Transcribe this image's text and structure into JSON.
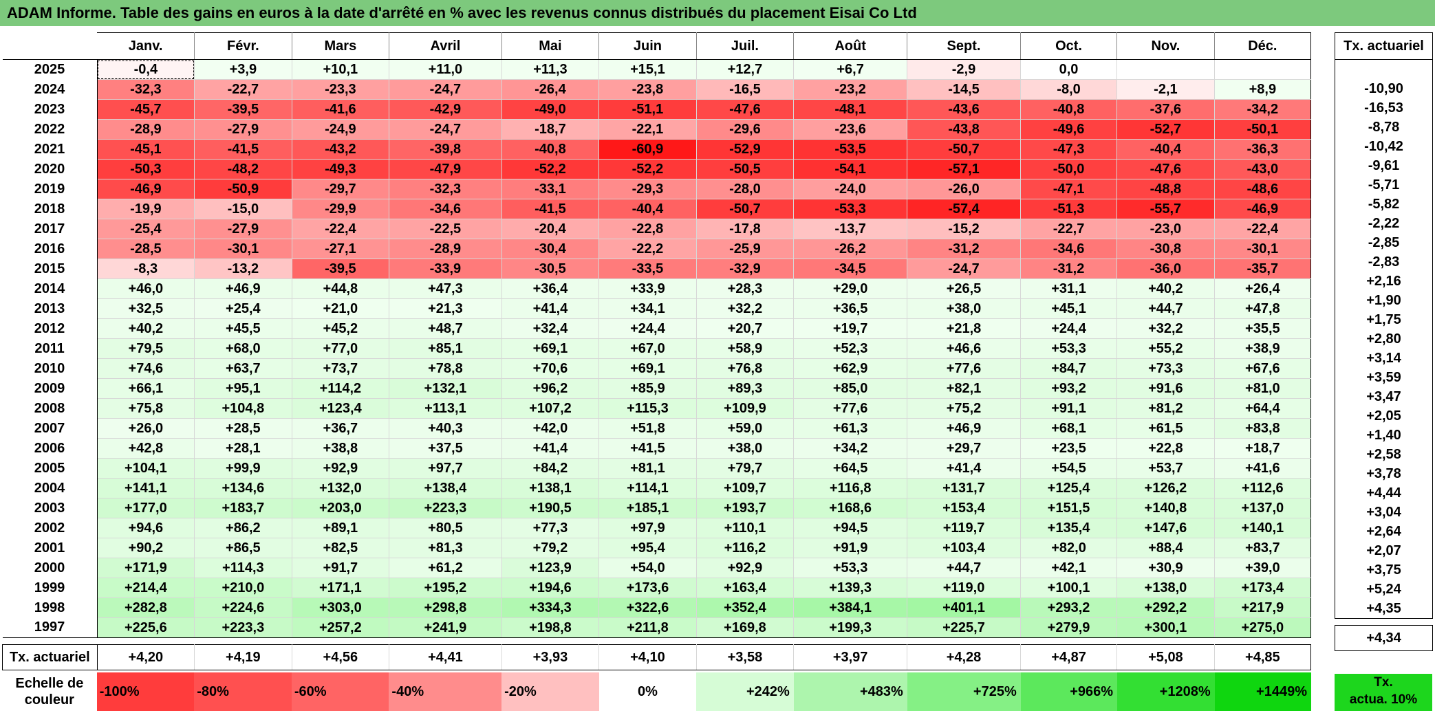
{
  "title": "ADAM Informe. Table des gains en euros à la date d'arrêté en % avec les revenus connus distribués du placement Eisai Co Ltd",
  "months": [
    "Janv.",
    "Févr.",
    "Mars",
    "Avril",
    "Mai",
    "Juin",
    "Juil.",
    "Août",
    "Sept.",
    "Oct.",
    "Nov.",
    "Déc."
  ],
  "tx_header": "Tx. actuariel",
  "avg_label": "Tx. actuariel",
  "rows": [
    {
      "year": "2025",
      "v": [
        "-0,4",
        "+3,9",
        "+10,1",
        "+11,0",
        "+11,3",
        "+15,1",
        "+12,7",
        "+6,7",
        "-2,9",
        "0,0",
        "",
        ""
      ],
      "tx": ""
    },
    {
      "year": "2024",
      "v": [
        "-32,3",
        "-22,7",
        "-23,3",
        "-24,7",
        "-26,4",
        "-23,8",
        "-16,5",
        "-23,2",
        "-14,5",
        "-8,0",
        "-2,1",
        "+8,9"
      ],
      "tx": "-10,90"
    },
    {
      "year": "2023",
      "v": [
        "-45,7",
        "-39,5",
        "-41,6",
        "-42,9",
        "-49,0",
        "-51,1",
        "-47,6",
        "-48,1",
        "-43,6",
        "-40,8",
        "-37,6",
        "-34,2"
      ],
      "tx": "-16,53"
    },
    {
      "year": "2022",
      "v": [
        "-28,9",
        "-27,9",
        "-24,9",
        "-24,7",
        "-18,7",
        "-22,1",
        "-29,6",
        "-23,6",
        "-43,8",
        "-49,6",
        "-52,7",
        "-50,1"
      ],
      "tx": "-8,78"
    },
    {
      "year": "2021",
      "v": [
        "-45,1",
        "-41,5",
        "-43,2",
        "-39,8",
        "-40,8",
        "-60,9",
        "-52,9",
        "-53,5",
        "-50,7",
        "-47,3",
        "-40,4",
        "-36,3"
      ],
      "tx": "-10,42"
    },
    {
      "year": "2020",
      "v": [
        "-50,3",
        "-48,2",
        "-49,3",
        "-47,9",
        "-52,2",
        "-52,2",
        "-50,5",
        "-54,1",
        "-57,1",
        "-50,0",
        "-47,6",
        "-43,0"
      ],
      "tx": "-9,61"
    },
    {
      "year": "2019",
      "v": [
        "-46,9",
        "-50,9",
        "-29,7",
        "-32,3",
        "-33,1",
        "-29,3",
        "-28,0",
        "-24,0",
        "-26,0",
        "-47,1",
        "-48,8",
        "-48,6"
      ],
      "tx": "-5,71"
    },
    {
      "year": "2018",
      "v": [
        "-19,9",
        "-15,0",
        "-29,9",
        "-34,6",
        "-41,5",
        "-40,4",
        "-50,7",
        "-53,3",
        "-57,4",
        "-51,3",
        "-55,7",
        "-46,9"
      ],
      "tx": "-5,82"
    },
    {
      "year": "2017",
      "v": [
        "-25,4",
        "-27,9",
        "-22,4",
        "-22,5",
        "-20,4",
        "-22,8",
        "-17,8",
        "-13,7",
        "-15,2",
        "-22,7",
        "-23,0",
        "-22,4"
      ],
      "tx": "-2,22"
    },
    {
      "year": "2016",
      "v": [
        "-28,5",
        "-30,1",
        "-27,1",
        "-28,9",
        "-30,4",
        "-22,2",
        "-25,9",
        "-26,2",
        "-31,2",
        "-34,6",
        "-30,8",
        "-30,1"
      ],
      "tx": "-2,85"
    },
    {
      "year": "2015",
      "v": [
        "-8,3",
        "-13,2",
        "-39,5",
        "-33,9",
        "-30,5",
        "-33,5",
        "-32,9",
        "-34,5",
        "-24,7",
        "-31,2",
        "-36,0",
        "-35,7"
      ],
      "tx": "-2,83"
    },
    {
      "year": "2014",
      "v": [
        "+46,0",
        "+46,9",
        "+44,8",
        "+47,3",
        "+36,4",
        "+33,9",
        "+28,3",
        "+29,0",
        "+26,5",
        "+31,1",
        "+40,2",
        "+26,4"
      ],
      "tx": "+2,16"
    },
    {
      "year": "2013",
      "v": [
        "+32,5",
        "+25,4",
        "+21,0",
        "+21,3",
        "+41,4",
        "+34,1",
        "+32,2",
        "+36,5",
        "+38,0",
        "+45,1",
        "+44,7",
        "+47,8"
      ],
      "tx": "+1,90"
    },
    {
      "year": "2012",
      "v": [
        "+40,2",
        "+45,5",
        "+45,2",
        "+48,7",
        "+32,4",
        "+24,4",
        "+20,7",
        "+19,7",
        "+21,8",
        "+24,4",
        "+32,2",
        "+35,5"
      ],
      "tx": "+1,75"
    },
    {
      "year": "2011",
      "v": [
        "+79,5",
        "+68,0",
        "+77,0",
        "+85,1",
        "+69,1",
        "+67,0",
        "+58,9",
        "+52,3",
        "+46,6",
        "+53,3",
        "+55,2",
        "+38,9"
      ],
      "tx": "+2,80"
    },
    {
      "year": "2010",
      "v": [
        "+74,6",
        "+63,7",
        "+73,7",
        "+78,8",
        "+70,6",
        "+69,1",
        "+76,8",
        "+62,9",
        "+77,6",
        "+84,7",
        "+73,3",
        "+67,6"
      ],
      "tx": "+3,14"
    },
    {
      "year": "2009",
      "v": [
        "+66,1",
        "+95,1",
        "+114,2",
        "+132,1",
        "+96,2",
        "+85,9",
        "+89,3",
        "+85,0",
        "+82,1",
        "+93,2",
        "+91,6",
        "+81,0"
      ],
      "tx": "+3,59"
    },
    {
      "year": "2008",
      "v": [
        "+75,8",
        "+104,8",
        "+123,4",
        "+113,1",
        "+107,2",
        "+115,3",
        "+109,9",
        "+77,6",
        "+75,2",
        "+91,1",
        "+81,2",
        "+64,4"
      ],
      "tx": "+3,47"
    },
    {
      "year": "2007",
      "v": [
        "+26,0",
        "+28,5",
        "+36,7",
        "+40,3",
        "+42,0",
        "+51,8",
        "+59,0",
        "+61,3",
        "+46,9",
        "+68,1",
        "+61,5",
        "+83,8"
      ],
      "tx": "+2,05"
    },
    {
      "year": "2006",
      "v": [
        "+42,8",
        "+28,1",
        "+38,8",
        "+37,5",
        "+41,4",
        "+41,5",
        "+38,0",
        "+34,2",
        "+29,7",
        "+23,5",
        "+22,8",
        "+18,7"
      ],
      "tx": "+1,40"
    },
    {
      "year": "2005",
      "v": [
        "+104,1",
        "+99,9",
        "+92,9",
        "+97,7",
        "+84,2",
        "+81,1",
        "+79,7",
        "+64,5",
        "+41,4",
        "+54,5",
        "+53,7",
        "+41,6"
      ],
      "tx": "+2,58"
    },
    {
      "year": "2004",
      "v": [
        "+141,1",
        "+134,6",
        "+132,0",
        "+138,4",
        "+138,1",
        "+114,1",
        "+109,7",
        "+116,8",
        "+131,7",
        "+125,4",
        "+126,2",
        "+112,6"
      ],
      "tx": "+3,78"
    },
    {
      "year": "2003",
      "v": [
        "+177,0",
        "+183,7",
        "+203,0",
        "+223,3",
        "+190,5",
        "+185,1",
        "+193,7",
        "+168,6",
        "+153,4",
        "+151,5",
        "+140,8",
        "+137,0"
      ],
      "tx": "+4,44"
    },
    {
      "year": "2002",
      "v": [
        "+94,6",
        "+86,2",
        "+89,1",
        "+80,5",
        "+77,3",
        "+97,9",
        "+110,1",
        "+94,5",
        "+119,7",
        "+135,4",
        "+147,6",
        "+140,1"
      ],
      "tx": "+3,04"
    },
    {
      "year": "2001",
      "v": [
        "+90,2",
        "+86,5",
        "+82,5",
        "+81,3",
        "+79,2",
        "+95,4",
        "+116,2",
        "+91,9",
        "+103,4",
        "+82,0",
        "+88,4",
        "+83,7"
      ],
      "tx": "+2,64"
    },
    {
      "year": "2000",
      "v": [
        "+171,9",
        "+114,3",
        "+91,7",
        "+61,2",
        "+123,9",
        "+54,0",
        "+92,9",
        "+53,3",
        "+44,7",
        "+42,1",
        "+30,9",
        "+39,0"
      ],
      "tx": "+2,07"
    },
    {
      "year": "1999",
      "v": [
        "+214,4",
        "+210,0",
        "+171,1",
        "+195,2",
        "+194,6",
        "+173,6",
        "+163,4",
        "+139,3",
        "+119,0",
        "+100,1",
        "+138,0",
        "+173,4"
      ],
      "tx": "+3,75"
    },
    {
      "year": "1998",
      "v": [
        "+282,8",
        "+224,6",
        "+303,0",
        "+298,8",
        "+334,3",
        "+322,6",
        "+352,4",
        "+384,1",
        "+401,1",
        "+293,2",
        "+292,2",
        "+217,9"
      ],
      "tx": "+5,24"
    },
    {
      "year": "1997",
      "v": [
        "+225,6",
        "+223,3",
        "+257,2",
        "+241,9",
        "+198,8",
        "+211,8",
        "+169,8",
        "+199,3",
        "+225,7",
        "+279,9",
        "+300,1",
        "+275,0"
      ],
      "tx": "+4,35"
    }
  ],
  "avg": {
    "v": [
      "+4,20",
      "+4,19",
      "+4,56",
      "+4,41",
      "+3,93",
      "+4,10",
      "+3,58",
      "+3,97",
      "+4,28",
      "+4,87",
      "+5,08",
      "+4,85"
    ],
    "tx": "+4,34"
  },
  "scale": {
    "label_line1": "Echelle de",
    "label_line2": "couleur",
    "steps": [
      {
        "label": "-100%",
        "color": "#ff3c3c",
        "side": "neg"
      },
      {
        "label": "-80%",
        "color": "#ff5050",
        "side": "neg"
      },
      {
        "label": "-60%",
        "color": "#ff6464",
        "side": "neg"
      },
      {
        "label": "-40%",
        "color": "#ff8c8c",
        "side": "neg"
      },
      {
        "label": "-20%",
        "color": "#ffc0c0",
        "side": "neg"
      },
      {
        "label": "0%",
        "color": "#ffffff",
        "side": "mid"
      },
      {
        "label": "+242%",
        "color": "#d6fcd6",
        "side": "pos"
      },
      {
        "label": "+483%",
        "color": "#adf5ad",
        "side": "pos"
      },
      {
        "label": "+725%",
        "color": "#85f085",
        "side": "pos"
      },
      {
        "label": "+966%",
        "color": "#5ce85c",
        "side": "pos"
      },
      {
        "label": "+1208%",
        "color": "#33df33",
        "side": "pos"
      },
      {
        "label": "+1449%",
        "color": "#0fd60f",
        "side": "pos"
      }
    ],
    "legend_line1": "Tx.",
    "legend_line2": "actua. 10%"
  },
  "colors": {
    "title_bg": "#7dc97d",
    "legend_green": "#1dd61d"
  }
}
